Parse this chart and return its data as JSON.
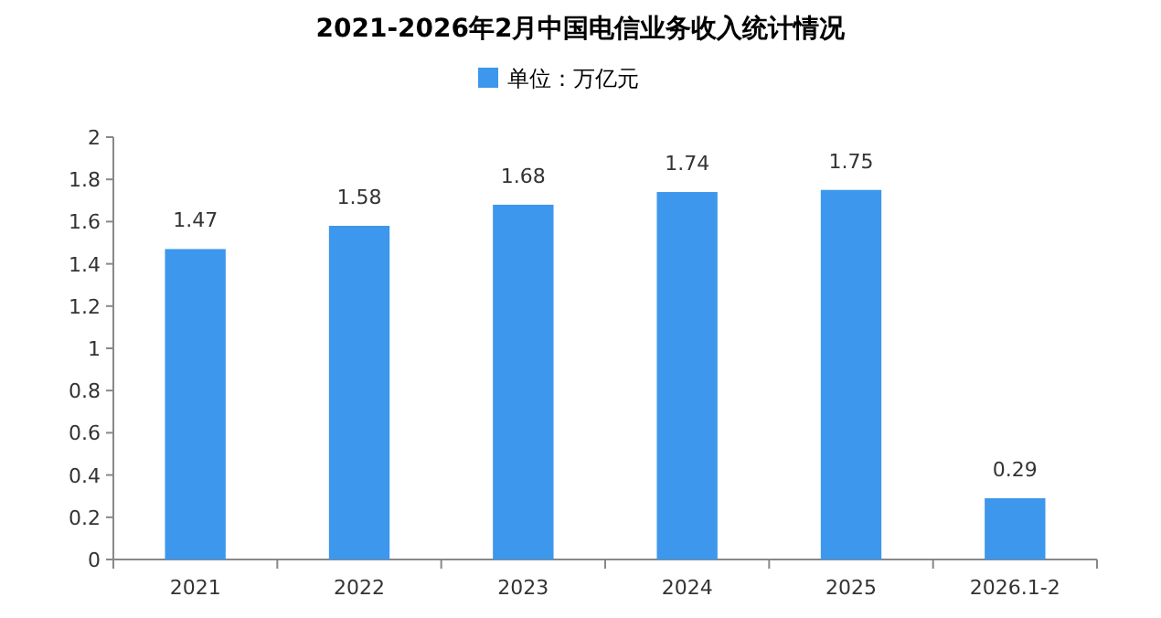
{
  "chart_data": {
    "type": "bar",
    "title": "2021-2026年2月中国电信业务收入统计情况",
    "categories": [
      "2021",
      "2022",
      "2023",
      "2024",
      "2025",
      "2026.1-2"
    ],
    "series": [
      {
        "name": "单位：万亿元",
        "color": "#3d97ec",
        "values": [
          1.47,
          1.58,
          1.68,
          1.74,
          1.75,
          0.29
        ]
      }
    ],
    "ylim": [
      0,
      2
    ],
    "yticks": [
      0,
      0.2,
      0.4,
      0.6,
      0.8,
      1,
      1.2,
      1.4,
      1.6,
      1.8,
      2
    ],
    "data_labels": true,
    "legend": "top",
    "grid": false
  }
}
